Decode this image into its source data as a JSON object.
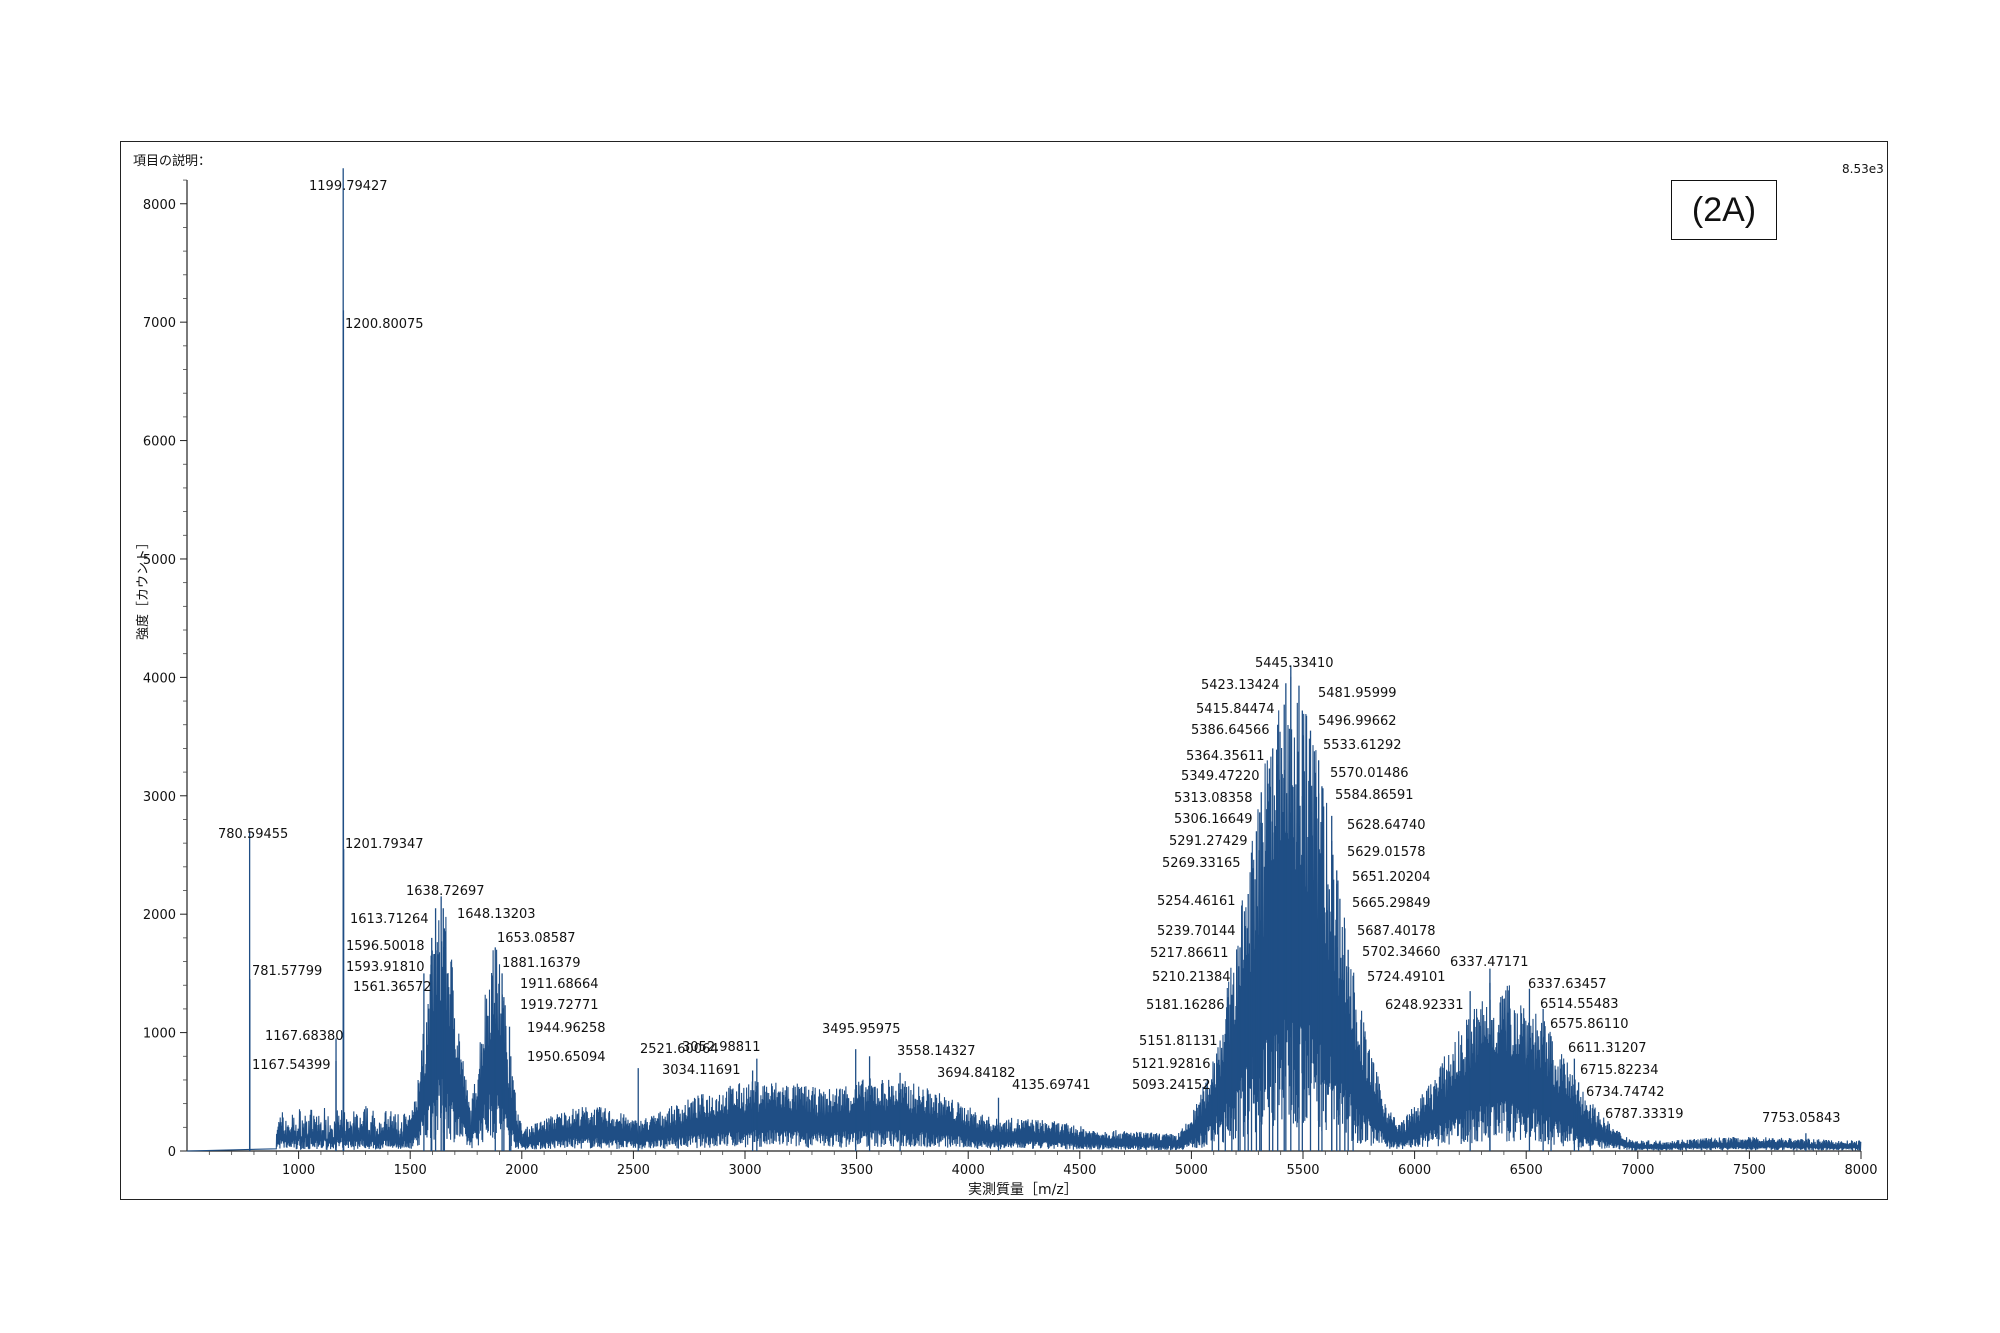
{
  "chart_data": {
    "type": "line",
    "panel_label": "(2A)",
    "header_text": "項目の説明：",
    "max_intensity_label": "8.53e3",
    "xlabel": "実測質量［m/z］",
    "ylabel": "強度［カウント］",
    "xlim": [
      500,
      8000
    ],
    "ylim": [
      0,
      8530
    ],
    "x_ticks": [
      1000,
      1500,
      2000,
      2500,
      3000,
      3500,
      4000,
      4500,
      5000,
      5500,
      6000,
      6500,
      7000,
      7500,
      8000
    ],
    "y_ticks": [
      0,
      1000,
      2000,
      3000,
      4000,
      5000,
      6000,
      7000,
      8000
    ],
    "grid": false,
    "color": "#1f4e85",
    "envelopes": [
      {
        "center": 1640,
        "width": 70,
        "height": 2050
      },
      {
        "center": 1875,
        "width": 60,
        "height": 1750
      },
      {
        "center": 2300,
        "width": 250,
        "height": 380
      },
      {
        "center": 3100,
        "width": 450,
        "height": 600
      },
      {
        "center": 3600,
        "width": 400,
        "height": 620
      },
      {
        "center": 4200,
        "width": 400,
        "height": 280
      },
      {
        "center": 5450,
        "width": 200,
        "height": 4020
      },
      {
        "center": 6400,
        "width": 250,
        "height": 1420
      },
      {
        "center": 7500,
        "width": 500,
        "height": 120
      }
    ],
    "peaks": [
      {
        "mz": 780.59455,
        "intensity": 2700,
        "label": "780.59455"
      },
      {
        "mz": 781.57799,
        "intensity": 1450,
        "label": "781.57799"
      },
      {
        "mz": 1167.6838,
        "intensity": 950,
        "label": "1167.68380"
      },
      {
        "mz": 1167.54399,
        "intensity": 760,
        "label": "1167.54399"
      },
      {
        "mz": 1199.79427,
        "intensity": 8300,
        "label": "1199.79427"
      },
      {
        "mz": 1200.80075,
        "intensity": 7100,
        "label": "1200.80075"
      },
      {
        "mz": 1201.79347,
        "intensity": 2550,
        "label": "1201.79347"
      },
      {
        "mz": 1561.36572,
        "intensity": 1500,
        "label": "1561.36572"
      },
      {
        "mz": 1593.9181,
        "intensity": 1650,
        "label": "1593.91810"
      },
      {
        "mz": 1596.50018,
        "intensity": 1800,
        "label": "1596.50018"
      },
      {
        "mz": 1613.71264,
        "intensity": 2050,
        "label": "1613.71264"
      },
      {
        "mz": 1638.72697,
        "intensity": 2150,
        "label": "1638.72697"
      },
      {
        "mz": 1648.13203,
        "intensity": 2050,
        "label": "1648.13203"
      },
      {
        "mz": 1653.08587,
        "intensity": 1880,
        "label": "1653.08587"
      },
      {
        "mz": 1881.16379,
        "intensity": 1720,
        "label": "1881.16379"
      },
      {
        "mz": 1911.68664,
        "intensity": 1500,
        "label": "1911.68664"
      },
      {
        "mz": 1919.72771,
        "intensity": 1300,
        "label": "1919.72771"
      },
      {
        "mz": 1944.96258,
        "intensity": 1050,
        "label": "1944.96258"
      },
      {
        "mz": 1950.65094,
        "intensity": 800,
        "label": "1950.65094"
      },
      {
        "mz": 2521.60064,
        "intensity": 700,
        "label": "2521.60064"
      },
      {
        "mz": 3034.11691,
        "intensity": 680,
        "label": "3034.11691"
      },
      {
        "mz": 3052.98811,
        "intensity": 780,
        "label": "3052.98811"
      },
      {
        "mz": 3495.95975,
        "intensity": 860,
        "label": "3495.95975"
      },
      {
        "mz": 3558.14327,
        "intensity": 800,
        "label": "3558.14327"
      },
      {
        "mz": 3694.84182,
        "intensity": 660,
        "label": "3694.84182"
      },
      {
        "mz": 4135.69741,
        "intensity": 450,
        "label": "4135.69741"
      },
      {
        "mz": 5093.24152,
        "intensity": 580,
        "label": "5093.24152"
      },
      {
        "mz": 5121.92816,
        "intensity": 770,
        "label": "5121.92816"
      },
      {
        "mz": 5151.81131,
        "intensity": 980,
        "label": "5151.81131"
      },
      {
        "mz": 5181.16286,
        "intensity": 1320,
        "label": "5181.16286"
      },
      {
        "mz": 5210.21384,
        "intensity": 1530,
        "label": "5210.21384"
      },
      {
        "mz": 5217.86611,
        "intensity": 1720,
        "label": "5217.86611"
      },
      {
        "mz": 5239.70144,
        "intensity": 1900,
        "label": "5239.70144"
      },
      {
        "mz": 5254.46161,
        "intensity": 2170,
        "label": "5254.46161"
      },
      {
        "mz": 5269.33165,
        "intensity": 2520,
        "label": "5269.33165"
      },
      {
        "mz": 5291.27429,
        "intensity": 2700,
        "label": "5291.27429"
      },
      {
        "mz": 5306.16649,
        "intensity": 2860,
        "label": "5306.16649"
      },
      {
        "mz": 5313.08358,
        "intensity": 3030,
        "label": "5313.08358"
      },
      {
        "mz": 5349.4722,
        "intensity": 3230,
        "label": "5349.47220"
      },
      {
        "mz": 5364.35611,
        "intensity": 3400,
        "label": "5364.35611"
      },
      {
        "mz": 5386.64566,
        "intensity": 3600,
        "label": "5386.64566"
      },
      {
        "mz": 5415.84474,
        "intensity": 3770,
        "label": "5415.84474"
      },
      {
        "mz": 5423.13424,
        "intensity": 3950,
        "label": "5423.13424"
      },
      {
        "mz": 5445.3341,
        "intensity": 4100,
        "label": "5445.33410"
      },
      {
        "mz": 5481.95999,
        "intensity": 3930,
        "label": "5481.95999"
      },
      {
        "mz": 5496.99662,
        "intensity": 3720,
        "label": "5496.99662"
      },
      {
        "mz": 5533.61292,
        "intensity": 3550,
        "label": "5533.61292"
      },
      {
        "mz": 5570.01486,
        "intensity": 3300,
        "label": "5570.01486"
      },
      {
        "mz": 5584.86591,
        "intensity": 3080,
        "label": "5584.86591"
      },
      {
        "mz": 5628.6474,
        "intensity": 2830,
        "label": "5628.64740"
      },
      {
        "mz": 5629.01578,
        "intensity": 2620,
        "label": "5629.01578"
      },
      {
        "mz": 5651.20204,
        "intensity": 2370,
        "label": "5651.20204"
      },
      {
        "mz": 5665.29849,
        "intensity": 2130,
        "label": "5665.29849"
      },
      {
        "mz": 5687.40178,
        "intensity": 1880,
        "label": "5687.40178"
      },
      {
        "mz": 5702.3466,
        "intensity": 1700,
        "label": "5702.34660"
      },
      {
        "mz": 5724.49101,
        "intensity": 1480,
        "label": "5724.49101"
      },
      {
        "mz": 6248.92331,
        "intensity": 1350,
        "label": "6248.92331"
      },
      {
        "mz": 6337.47171,
        "intensity": 1540,
        "label": "6337.47171"
      },
      {
        "mz": 6337.63457,
        "intensity": 1420,
        "label": "6337.63457"
      },
      {
        "mz": 6514.55483,
        "intensity": 1370,
        "label": "6514.55483"
      },
      {
        "mz": 6575.8611,
        "intensity": 1200,
        "label": "6575.86110"
      },
      {
        "mz": 6611.31207,
        "intensity": 970,
        "label": "6611.31207"
      },
      {
        "mz": 6715.82234,
        "intensity": 780,
        "label": "6715.82234"
      },
      {
        "mz": 6734.74742,
        "intensity": 580,
        "label": "6734.74742"
      },
      {
        "mz": 6787.33319,
        "intensity": 390,
        "label": "6787.33319"
      },
      {
        "mz": 7753.05843,
        "intensity": 150,
        "label": "7753.05843"
      }
    ]
  }
}
